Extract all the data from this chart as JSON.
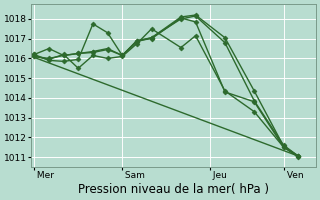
{
  "background_color": "#b8ddd0",
  "grid_color": "#ffffff",
  "line_color": "#2d6a2d",
  "marker": "D",
  "marker_size": 2.5,
  "linewidth": 1.0,
  "ylim": [
    1010.5,
    1018.75
  ],
  "yticks": [
    1011,
    1012,
    1013,
    1014,
    1015,
    1016,
    1017,
    1018
  ],
  "xlabel": "Pression niveau de la mer( hPa )",
  "xlabel_fontsize": 8.5,
  "tick_fontsize": 6.5,
  "day_labels": [
    " Mer",
    " Sam",
    " Jeu",
    " Ven"
  ],
  "vline_positions": [
    0.0,
    3.0,
    6.0,
    8.5
  ],
  "xlim": [
    -0.1,
    9.6
  ],
  "series": [
    {
      "x": [
        0,
        0.5,
        1.0,
        1.5,
        2.0,
        2.5,
        3.0,
        3.5,
        4.0,
        5.0,
        5.5,
        6.5,
        7.5,
        8.5,
        9.0
      ],
      "y": [
        1016.2,
        1015.9,
        1015.85,
        1015.95,
        1017.75,
        1017.3,
        1016.15,
        1016.9,
        1017.0,
        1018.05,
        1017.85,
        1014.3,
        1013.8,
        1011.5,
        1011.0
      ]
    },
    {
      "x": [
        0,
        0.5,
        1.0,
        1.5,
        2.0,
        2.5,
        3.0,
        3.5,
        4.0,
        5.0,
        5.5,
        6.5,
        7.5,
        8.5,
        9.0
      ],
      "y": [
        1016.2,
        1016.5,
        1016.15,
        1016.25,
        1016.35,
        1016.5,
        1016.15,
        1016.9,
        1017.05,
        1018.1,
        1018.2,
        1017.05,
        1014.35,
        1011.55,
        1011.05
      ]
    },
    {
      "x": [
        0,
        0.5,
        1.0,
        1.5,
        2.0,
        2.5,
        3.0,
        3.5,
        4.0,
        5.0,
        5.5,
        6.5,
        7.5,
        8.5,
        9.0
      ],
      "y": [
        1016.1,
        1016.0,
        1016.15,
        1016.25,
        1016.3,
        1016.45,
        1016.15,
        1016.85,
        1017.05,
        1018.0,
        1018.15,
        1016.8,
        1013.85,
        1011.6,
        1011.05
      ]
    },
    {
      "x": [
        0,
        0.5,
        1.0,
        1.5,
        2.0,
        2.5,
        3.0,
        3.5,
        4.0,
        5.0,
        5.5,
        6.5,
        7.5,
        8.5,
        9.0
      ],
      "y": [
        1016.1,
        1015.95,
        1016.2,
        1015.5,
        1016.15,
        1016.0,
        1016.1,
        1016.75,
        1017.5,
        1016.55,
        1017.15,
        1014.35,
        1013.3,
        1011.5,
        1011.05
      ]
    }
  ],
  "trend_line": {
    "x": [
      0,
      9.0
    ],
    "y": [
      1016.05,
      1011.05
    ]
  }
}
